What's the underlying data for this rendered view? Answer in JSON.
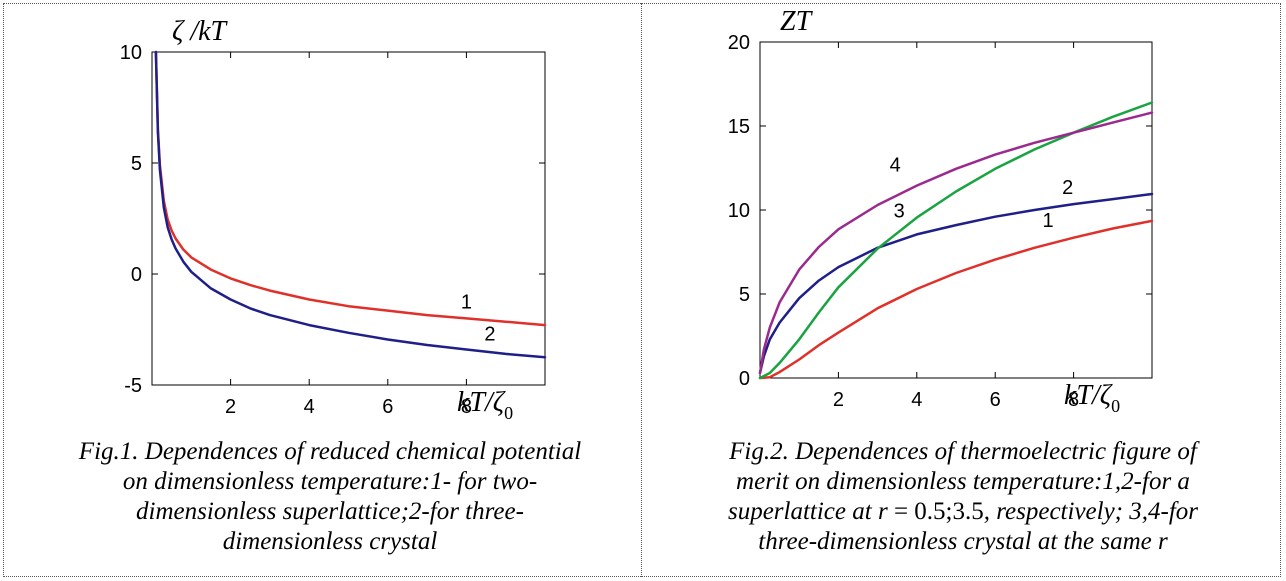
{
  "chart_data": [
    {
      "type": "line",
      "ylabel": "ζ /kT",
      "xlabel": "kT/ζ₀",
      "xlabel_main": "kT/ζ",
      "xlabel_sub": "0",
      "ylabel_main": "ζ /kT",
      "xlim": [
        0,
        10
      ],
      "ylim": [
        -5,
        10
      ],
      "xticks": [
        2,
        4,
        6,
        8
      ],
      "xtick_labels": [
        "2",
        "4",
        "6",
        "8"
      ],
      "yticks": [
        -5,
        0,
        5,
        10
      ],
      "ytick_labels": [
        "-5",
        "0",
        "5",
        "10"
      ],
      "grid": false,
      "series": [
        {
          "label": "1",
          "color": "#e0302a",
          "x": [
            0.1,
            0.15,
            0.2,
            0.3,
            0.4,
            0.5,
            0.6,
            0.8,
            1.0,
            1.5,
            2.0,
            2.5,
            3.0,
            4.0,
            5.0,
            6.0,
            7.0,
            8.0,
            9.0,
            10.0
          ],
          "y": [
            10.0,
            6.5,
            4.9,
            3.3,
            2.45,
            1.95,
            1.6,
            1.1,
            0.75,
            0.2,
            -0.2,
            -0.5,
            -0.75,
            -1.15,
            -1.45,
            -1.65,
            -1.85,
            -2.0,
            -2.15,
            -2.3
          ]
        },
        {
          "label": "2",
          "color": "#1f1f8a",
          "x": [
            0.1,
            0.15,
            0.2,
            0.3,
            0.4,
            0.5,
            0.6,
            0.8,
            1.0,
            1.5,
            2.0,
            2.5,
            3.0,
            4.0,
            5.0,
            6.0,
            7.0,
            8.0,
            9.0,
            10.0
          ],
          "y": [
            10.0,
            6.4,
            4.7,
            3.0,
            2.1,
            1.55,
            1.15,
            0.55,
            0.1,
            -0.65,
            -1.15,
            -1.55,
            -1.85,
            -2.3,
            -2.65,
            -2.95,
            -3.2,
            -3.4,
            -3.6,
            -3.75
          ]
        }
      ],
      "annotations": [
        {
          "text": "1",
          "series": 0,
          "x": 8.0,
          "y": -1.55
        },
        {
          "text": "2",
          "series": 1,
          "x": 8.6,
          "y": -3.0
        }
      ],
      "caption": "Fig.1. Dependences of reduced chemical potential on  dimensionless temperature:1- for two-dimensionless superlattice;2-for  three-dimensionless crystal",
      "caption_lines": [
        "Fig.1. Dependences of reduced chemical potential",
        "on  dimensionless temperature:1- for two-",
        "dimensionless superlattice;2-for  three-",
        "dimensionless crystal"
      ]
    },
    {
      "type": "line",
      "ylabel": "ZT",
      "xlabel": "kT/ζ₀",
      "xlabel_main": "kT/ζ",
      "xlabel_sub": "0",
      "ylabel_main": "ZT",
      "xlim": [
        0,
        10
      ],
      "ylim": [
        0,
        20
      ],
      "xticks": [
        2,
        4,
        6,
        8
      ],
      "xtick_labels": [
        "2",
        "4",
        "6",
        "8"
      ],
      "yticks": [
        0,
        5,
        10,
        15,
        20
      ],
      "ytick_labels": [
        "0",
        "5",
        "10",
        "15",
        "20"
      ],
      "grid": false,
      "series": [
        {
          "label": "1",
          "color": "#e0302a",
          "x": [
            0.0,
            0.25,
            0.5,
            1.0,
            1.5,
            2.0,
            3.0,
            4.0,
            5.0,
            6.0,
            7.0,
            8.0,
            9.0,
            10.0
          ],
          "y": [
            0.0,
            0.05,
            0.35,
            1.1,
            1.95,
            2.7,
            4.15,
            5.3,
            6.25,
            7.05,
            7.75,
            8.35,
            8.9,
            9.35
          ]
        },
        {
          "label": "2",
          "color": "#1f1f8a",
          "x": [
            0.0,
            0.1,
            0.25,
            0.5,
            1.0,
            1.5,
            2.0,
            3.0,
            4.0,
            5.0,
            6.0,
            7.0,
            8.0,
            9.0,
            10.0
          ],
          "y": [
            0.3,
            1.3,
            2.3,
            3.3,
            4.75,
            5.8,
            6.6,
            7.75,
            8.55,
            9.1,
            9.6,
            10.0,
            10.35,
            10.65,
            10.95
          ]
        },
        {
          "label": "3",
          "color": "#1aa341",
          "x": [
            0.0,
            0.25,
            0.5,
            1.0,
            1.5,
            2.0,
            3.0,
            4.0,
            5.0,
            6.0,
            7.0,
            8.0,
            9.0,
            10.0
          ],
          "y": [
            0.0,
            0.3,
            0.9,
            2.3,
            3.9,
            5.4,
            7.7,
            9.55,
            11.1,
            12.45,
            13.6,
            14.6,
            15.55,
            16.4
          ]
        },
        {
          "label": "4",
          "color": "#9b2a8e",
          "x": [
            0.0,
            0.1,
            0.25,
            0.5,
            1.0,
            1.5,
            2.0,
            3.0,
            4.0,
            5.0,
            6.0,
            7.0,
            8.0,
            9.0,
            10.0
          ],
          "y": [
            0.3,
            1.7,
            3.0,
            4.5,
            6.45,
            7.8,
            8.85,
            10.3,
            11.45,
            12.45,
            13.3,
            14.0,
            14.6,
            15.2,
            15.8
          ]
        }
      ],
      "annotations": [
        {
          "text": "1",
          "series": 0,
          "x": 7.35,
          "y": 9.0
        },
        {
          "text": "2",
          "series": 1,
          "x": 7.85,
          "y": 10.95
        },
        {
          "text": "3",
          "series": 2,
          "x": 3.55,
          "y": 9.55
        },
        {
          "text": "4",
          "series": 3,
          "x": 3.45,
          "y": 12.3
        }
      ],
      "caption_line1": "Fig.2. Dependences of thermoelectric figure of",
      "caption_line2": "merit on  dimensionless temperature:1,2-for a",
      "caption_line3_a": "superlattice at ",
      "caption_line3_var": "r",
      "caption_line3_eq": " = 0.5;3.5",
      "caption_line3_b": ", respectively; 3,4-for",
      "caption_line4": "three-dimensionless crystal at the same r"
    }
  ]
}
